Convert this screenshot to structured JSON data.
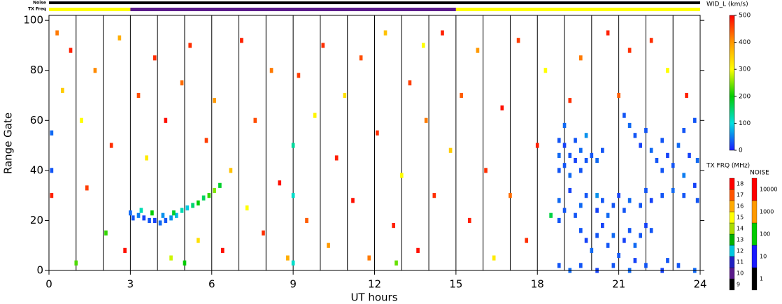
{
  "chart_data": {
    "type": "range_time",
    "xlabel": "UT hours",
    "ylabel": "Range Gate",
    "xlim": [
      0,
      24
    ],
    "ylim": [
      0,
      102
    ],
    "xticks": [
      0,
      3,
      6,
      9,
      12,
      15,
      18,
      21,
      24
    ],
    "xminorticks": [
      1,
      2,
      4,
      5,
      7,
      8,
      10,
      11,
      13,
      14,
      16,
      17,
      19,
      20,
      22,
      23
    ],
    "yticks": [
      0,
      20,
      40,
      60,
      80,
      100
    ],
    "grid": true,
    "colorbar": {
      "title": "WID_L (km/s)",
      "lim": [
        0,
        500
      ],
      "ticks": [
        0,
        100,
        200,
        300,
        400,
        500
      ],
      "colormap": [
        "#1a1aff",
        "#00e0e0",
        "#00cc00",
        "#ffff00",
        "#ff9900",
        "#ff0000"
      ]
    },
    "tx_freq_scale": {
      "title": "TX FRQ (MHz)",
      "ticks": [
        9,
        10,
        11,
        12,
        13,
        14,
        15,
        16,
        17,
        18
      ],
      "colors": [
        "#000000",
        "#5a1a8a",
        "#2020c0",
        "#00c8e0",
        "#00b000",
        "#aadd00",
        "#ffff00",
        "#ffaa00",
        "#ff5500",
        "#ff0000"
      ]
    },
    "noise_scale": {
      "title": "NOISE",
      "ticks": [
        1,
        10,
        100,
        1000,
        10000
      ],
      "colors": [
        "#000000",
        "#1a1aff",
        "#00cc00",
        "#ff9900",
        "#ff0000"
      ]
    },
    "noise_bar": {
      "label": "Noise",
      "segments": [
        {
          "start": 0,
          "end": 24,
          "value": 1
        }
      ]
    },
    "tx_freq_bar": {
      "label": "TX Freq",
      "segments": [
        {
          "start": 0,
          "end": 3,
          "value": 15
        },
        {
          "start": 3,
          "end": 15,
          "value": 10
        },
        {
          "start": 15,
          "end": 24,
          "value": 15
        }
      ]
    },
    "points": [
      [
        0.3,
        95,
        420
      ],
      [
        0.5,
        72,
        350
      ],
      [
        0.8,
        88,
        480
      ],
      [
        1.2,
        60,
        300
      ],
      [
        1.4,
        33,
        460
      ],
      [
        1.7,
        80,
        410
      ],
      [
        2.1,
        15,
        220
      ],
      [
        2.3,
        50,
        470
      ],
      [
        2.6,
        93,
        380
      ],
      [
        2.8,
        8,
        490
      ],
      [
        3.3,
        70,
        450
      ],
      [
        3.6,
        45,
        320
      ],
      [
        3.9,
        85,
        470
      ],
      [
        4.3,
        60,
        490
      ],
      [
        4.5,
        5,
        280
      ],
      [
        4.9,
        75,
        430
      ],
      [
        5.2,
        90,
        470
      ],
      [
        5.5,
        12,
        330
      ],
      [
        5.8,
        52,
        460
      ],
      [
        6.1,
        68,
        400
      ],
      [
        6.4,
        8,
        490
      ],
      [
        6.7,
        40,
        360
      ],
      [
        7.1,
        92,
        480
      ],
      [
        7.3,
        25,
        300
      ],
      [
        7.6,
        60,
        450
      ],
      [
        7.9,
        15,
        470
      ],
      [
        8.2,
        80,
        420
      ],
      [
        8.5,
        35,
        490
      ],
      [
        8.8,
        5,
        380
      ],
      [
        9.0,
        50,
        130
      ],
      [
        9.0,
        30,
        110
      ],
      [
        9.2,
        78,
        460
      ],
      [
        9.5,
        20,
        440
      ],
      [
        9.8,
        62,
        310
      ],
      [
        10.1,
        90,
        470
      ],
      [
        10.3,
        10,
        400
      ],
      [
        10.6,
        45,
        480
      ],
      [
        10.9,
        70,
        330
      ],
      [
        11.2,
        28,
        490
      ],
      [
        11.5,
        85,
        450
      ],
      [
        11.8,
        5,
        420
      ],
      [
        12.1,
        55,
        470
      ],
      [
        12.4,
        95,
        360
      ],
      [
        12.7,
        18,
        480
      ],
      [
        13.0,
        38,
        300
      ],
      [
        13.3,
        75,
        460
      ],
      [
        13.6,
        8,
        490
      ],
      [
        13.9,
        60,
        420
      ],
      [
        14.2,
        30,
        470
      ],
      [
        14.5,
        95,
        480
      ],
      [
        14.8,
        48,
        350
      ],
      [
        15.2,
        70,
        440
      ],
      [
        15.5,
        20,
        480
      ],
      [
        15.8,
        88,
        400
      ],
      [
        16.1,
        40,
        470
      ],
      [
        16.4,
        5,
        320
      ],
      [
        16.7,
        65,
        490
      ],
      [
        17.0,
        30,
        430
      ],
      [
        17.3,
        92,
        460
      ],
      [
        17.6,
        12,
        470
      ],
      [
        18.0,
        50,
        480
      ],
      [
        18.3,
        80,
        300
      ],
      [
        18.5,
        22,
        170
      ],
      [
        19.2,
        68,
        470
      ],
      [
        19.6,
        85,
        420
      ],
      [
        20.2,
        30,
        60
      ],
      [
        20.6,
        95,
        480
      ],
      [
        21.0,
        70,
        440
      ],
      [
        21.4,
        88,
        470
      ],
      [
        22.2,
        92,
        470
      ],
      [
        22.8,
        80,
        300
      ],
      [
        23.5,
        70,
        480
      ],
      [
        0.1,
        55,
        40
      ],
      [
        0.1,
        40,
        30
      ],
      [
        0.1,
        30,
        480
      ],
      [
        1.0,
        3,
        230
      ],
      [
        5.0,
        3,
        200
      ],
      [
        9.0,
        3,
        110
      ],
      [
        13.8,
        90,
        300
      ],
      [
        12.8,
        3,
        240
      ],
      [
        3.0,
        23,
        40
      ],
      [
        3.1,
        21,
        30
      ],
      [
        3.3,
        22,
        50
      ],
      [
        3.5,
        21,
        20
      ],
      [
        3.7,
        20,
        30
      ],
      [
        3.9,
        20,
        20
      ],
      [
        4.1,
        19,
        40
      ],
      [
        4.3,
        20,
        30
      ],
      [
        4.5,
        21,
        60
      ],
      [
        4.7,
        22,
        80
      ],
      [
        4.9,
        24,
        120
      ],
      [
        5.1,
        25,
        90
      ],
      [
        5.3,
        26,
        150
      ],
      [
        5.5,
        27,
        200
      ],
      [
        5.7,
        29,
        160
      ],
      [
        5.9,
        30,
        220
      ],
      [
        6.1,
        32,
        250
      ],
      [
        6.3,
        34,
        180
      ],
      [
        3.4,
        24,
        120
      ],
      [
        3.8,
        23,
        200
      ],
      [
        4.2,
        22,
        60
      ],
      [
        4.6,
        23,
        180
      ],
      [
        18.8,
        40,
        30
      ],
      [
        18.8,
        46,
        40
      ],
      [
        19.0,
        42,
        30
      ],
      [
        19.0,
        50,
        20
      ],
      [
        19.2,
        38,
        40
      ],
      [
        19.2,
        46,
        30
      ],
      [
        19.4,
        44,
        20
      ],
      [
        19.4,
        52,
        30
      ],
      [
        19.6,
        40,
        30
      ],
      [
        19.6,
        48,
        40
      ],
      [
        19.8,
        44,
        30
      ],
      [
        19.8,
        54,
        60
      ],
      [
        20.0,
        46,
        30
      ],
      [
        20.2,
        44,
        40
      ],
      [
        20.4,
        48,
        30
      ],
      [
        19.0,
        58,
        40
      ],
      [
        18.8,
        52,
        30
      ],
      [
        21.2,
        62,
        30
      ],
      [
        21.4,
        58,
        40
      ],
      [
        21.6,
        54,
        30
      ],
      [
        21.8,
        50,
        20
      ],
      [
        22.0,
        56,
        30
      ],
      [
        22.2,
        48,
        40
      ],
      [
        22.4,
        44,
        30
      ],
      [
        22.6,
        52,
        30
      ],
      [
        22.8,
        46,
        20
      ],
      [
        23.0,
        42,
        30
      ],
      [
        23.2,
        50,
        40
      ],
      [
        23.4,
        56,
        30
      ],
      [
        23.6,
        46,
        20
      ],
      [
        23.8,
        60,
        30
      ],
      [
        23.9,
        44,
        40
      ],
      [
        22.6,
        40,
        30
      ],
      [
        23.4,
        38,
        50
      ],
      [
        18.8,
        20,
        30
      ],
      [
        18.8,
        28,
        40
      ],
      [
        19.0,
        24,
        30
      ],
      [
        19.2,
        32,
        20
      ],
      [
        19.4,
        22,
        30
      ],
      [
        19.6,
        26,
        40
      ],
      [
        19.8,
        30,
        30
      ],
      [
        20.2,
        24,
        20
      ],
      [
        20.4,
        28,
        30
      ],
      [
        20.6,
        22,
        40
      ],
      [
        20.8,
        26,
        30
      ],
      [
        21.0,
        30,
        20
      ],
      [
        21.2,
        24,
        30
      ],
      [
        21.4,
        28,
        40
      ],
      [
        21.8,
        26,
        30
      ],
      [
        22.2,
        28,
        20
      ],
      [
        22.6,
        30,
        30
      ],
      [
        23.0,
        32,
        40
      ],
      [
        23.4,
        30,
        30
      ],
      [
        23.8,
        34,
        20
      ],
      [
        23.9,
        28,
        30
      ],
      [
        22.0,
        32,
        30
      ],
      [
        19.6,
        16,
        30
      ],
      [
        19.8,
        12,
        20
      ],
      [
        20.0,
        8,
        40
      ],
      [
        20.2,
        14,
        30
      ],
      [
        20.4,
        18,
        20
      ],
      [
        20.6,
        10,
        30
      ],
      [
        20.8,
        14,
        40
      ],
      [
        21.0,
        6,
        30
      ],
      [
        21.2,
        12,
        20
      ],
      [
        21.4,
        16,
        30
      ],
      [
        21.6,
        10,
        40
      ],
      [
        21.8,
        14,
        30
      ],
      [
        22.0,
        18,
        20
      ],
      [
        22.2,
        16,
        30
      ],
      [
        18.8,
        2,
        30
      ],
      [
        19.2,
        0,
        40
      ],
      [
        19.6,
        2,
        30
      ],
      [
        20.2,
        0,
        20
      ],
      [
        20.8,
        2,
        30
      ],
      [
        21.4,
        0,
        40
      ],
      [
        22.0,
        2,
        30
      ],
      [
        22.6,
        0,
        20
      ],
      [
        23.2,
        2,
        30
      ],
      [
        23.8,
        0,
        40
      ],
      [
        22.8,
        4,
        30
      ],
      [
        21.6,
        4,
        20
      ]
    ]
  }
}
